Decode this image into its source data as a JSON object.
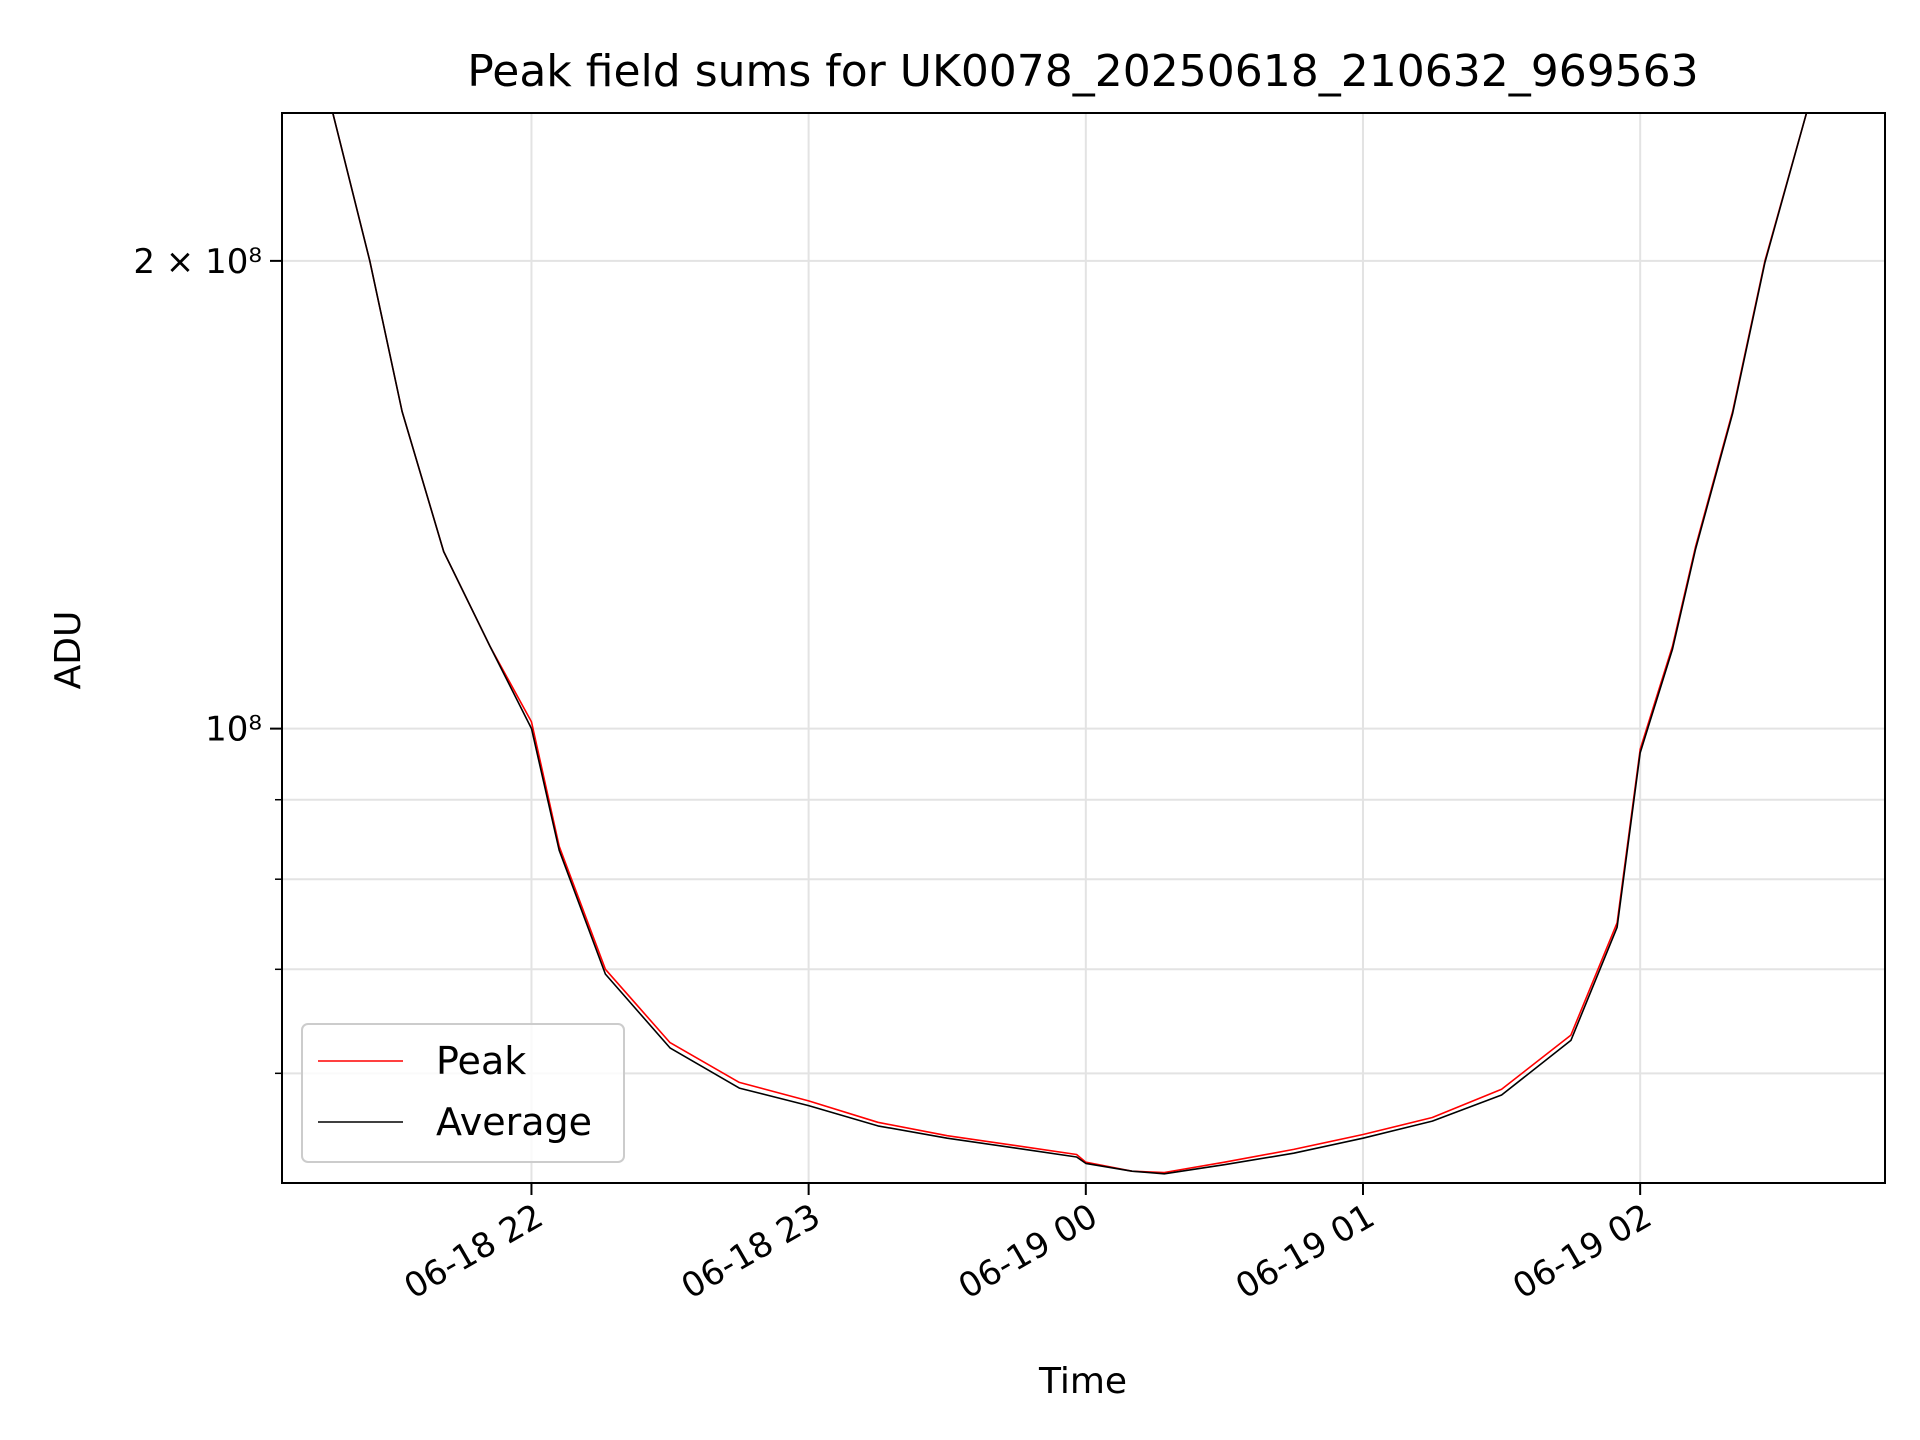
{
  "chart_data": {
    "type": "line",
    "title": "Peak field sums for UK0078_20250618_210632_969563",
    "xlabel": "Time",
    "ylabel": "ADU",
    "y_scale": "log",
    "grid": true,
    "legend_position": "lower-left",
    "xlim": [
      "2025-06-18 21:06",
      "2025-06-19 02:53"
    ],
    "ylim": [
      51000000,
      249000000
    ],
    "x_ticks": [
      "06-18 22",
      "06-18 23",
      "06-19 00",
      "06-19 01",
      "06-19 02"
    ],
    "x_tick_values": [
      "2025-06-18 22:00",
      "2025-06-18 23:00",
      "2025-06-19 00:00",
      "2025-06-19 01:00",
      "2025-06-19 02:00"
    ],
    "y_ticks": [
      {
        "label": "2 × 10⁸",
        "value": 200000000
      },
      {
        "label": "10⁸",
        "value": 100000000
      }
    ],
    "y_minor_ticks": [
      60000000,
      70000000,
      80000000,
      90000000
    ],
    "series": [
      {
        "name": "Peak",
        "color": "#ff0000",
        "x": [
          "2025-06-18 21:06",
          "2025-06-18 21:17",
          "2025-06-18 21:25",
          "2025-06-18 21:32",
          "2025-06-18 21:41",
          "2025-06-18 21:51",
          "2025-06-18 22:00",
          "2025-06-18 22:06",
          "2025-06-18 22:16",
          "2025-06-18 22:30",
          "2025-06-18 22:45",
          "2025-06-18 23:00",
          "2025-06-18 23:15",
          "2025-06-18 23:30",
          "2025-06-18 23:45",
          "2025-06-18 23:58",
          "2025-06-19 00:00",
          "2025-06-19 00:10",
          "2025-06-19 00:17",
          "2025-06-19 00:30",
          "2025-06-19 00:45",
          "2025-06-19 01:00",
          "2025-06-19 01:15",
          "2025-06-19 01:30",
          "2025-06-19 01:45",
          "2025-06-19 01:55",
          "2025-06-19 02:00",
          "2025-06-19 02:07",
          "2025-06-19 02:12",
          "2025-06-19 02:20",
          "2025-06-19 02:27",
          "2025-06-19 02:36",
          "2025-06-19 02:53"
        ],
        "y": [
          249000000,
          249000000,
          200000000,
          160000000,
          130000000,
          113000000,
          101000000,
          84000000,
          70000000,
          62800000,
          59200000,
          57600000,
          55800000,
          54700000,
          53900000,
          53200000,
          52600000,
          51900000,
          51800000,
          52600000,
          53600000,
          54800000,
          56200000,
          58600000,
          63500000,
          75000000,
          97000000,
          113000000,
          131000000,
          160000000,
          200000000,
          249000000,
          249000000
        ]
      },
      {
        "name": "Average",
        "color": "#000000",
        "x": [
          "2025-06-18 21:06",
          "2025-06-18 21:17",
          "2025-06-18 21:25",
          "2025-06-18 21:32",
          "2025-06-18 21:41",
          "2025-06-18 21:51",
          "2025-06-18 22:00",
          "2025-06-18 22:06",
          "2025-06-18 22:16",
          "2025-06-18 22:30",
          "2025-06-18 22:45",
          "2025-06-18 23:00",
          "2025-06-18 23:15",
          "2025-06-18 23:30",
          "2025-06-18 23:45",
          "2025-06-18 23:58",
          "2025-06-19 00:00",
          "2025-06-19 00:10",
          "2025-06-19 00:17",
          "2025-06-19 00:30",
          "2025-06-19 00:45",
          "2025-06-19 01:00",
          "2025-06-19 01:15",
          "2025-06-19 01:30",
          "2025-06-19 01:45",
          "2025-06-19 01:55",
          "2025-06-19 02:00",
          "2025-06-19 02:07",
          "2025-06-19 02:12",
          "2025-06-19 02:20",
          "2025-06-19 02:27",
          "2025-06-19 02:36",
          "2025-06-19 02:53"
        ],
        "y": [
          249000000,
          249000000,
          200000000,
          160000000,
          130000000,
          113000000,
          100000000,
          83500000,
          69500000,
          62300000,
          58700000,
          57200000,
          55500000,
          54500000,
          53700000,
          53000000,
          52500000,
          51900000,
          51700000,
          52400000,
          53300000,
          54500000,
          55900000,
          58100000,
          63000000,
          74500000,
          96500000,
          112500000,
          130500000,
          159500000,
          199500000,
          249000000,
          249000000
        ]
      }
    ]
  }
}
